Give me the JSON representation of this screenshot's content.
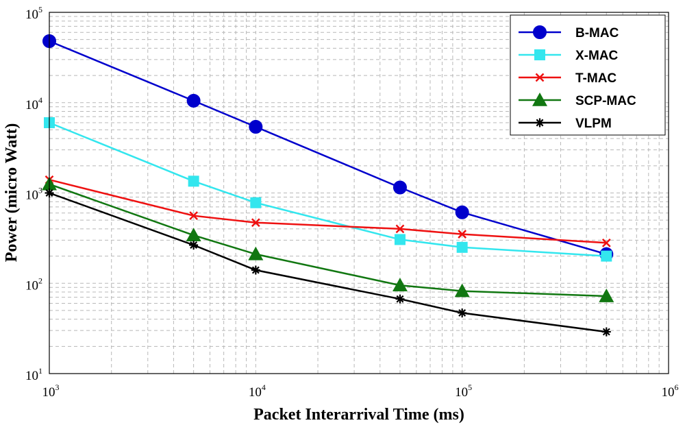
{
  "chart_data": {
    "type": "line",
    "xlabel": "Packet Interarrival Time (ms)",
    "ylabel": "Power (micro Watt)",
    "xscale": "log",
    "yscale": "log",
    "xlim": [
      1000,
      1000000
    ],
    "ylim": [
      10,
      100000
    ],
    "xticks": [
      {
        "value": 1000,
        "base": "10",
        "exp": "3"
      },
      {
        "value": 10000,
        "base": "10",
        "exp": "4"
      },
      {
        "value": 100000,
        "base": "10",
        "exp": "5"
      },
      {
        "value": 1000000,
        "base": "10",
        "exp": "6"
      }
    ],
    "yticks": [
      {
        "value": 10,
        "base": "10",
        "exp": "1"
      },
      {
        "value": 100,
        "base": "10",
        "exp": "2"
      },
      {
        "value": 1000,
        "base": "10",
        "exp": "3"
      },
      {
        "value": 10000,
        "base": "10",
        "exp": "4"
      },
      {
        "value": 100000,
        "base": "10",
        "exp": "5"
      }
    ],
    "grid": true,
    "legend_position": "top-right",
    "x": [
      1000,
      5000,
      10000,
      50000,
      100000,
      500000
    ],
    "series": [
      {
        "name": "B-MAC",
        "color": "#0000cc",
        "marker": "circle",
        "values": [
          48000,
          10500,
          5400,
          1150,
          610,
          210
        ]
      },
      {
        "name": "X-MAC",
        "color": "#33e6ee",
        "marker": "square",
        "values": [
          6000,
          1350,
          780,
          305,
          250,
          200
        ]
      },
      {
        "name": "T-MAC",
        "color": "#ee1111",
        "marker": "x",
        "values": [
          1400,
          560,
          470,
          400,
          350,
          280
        ]
      },
      {
        "name": "SCP-MAC",
        "color": "#117711",
        "marker": "triangle",
        "values": [
          1250,
          340,
          210,
          95,
          82,
          72
        ]
      },
      {
        "name": "VLPM",
        "color": "#000000",
        "marker": "asterisk",
        "values": [
          1000,
          265,
          140,
          67,
          47,
          29
        ]
      }
    ]
  }
}
